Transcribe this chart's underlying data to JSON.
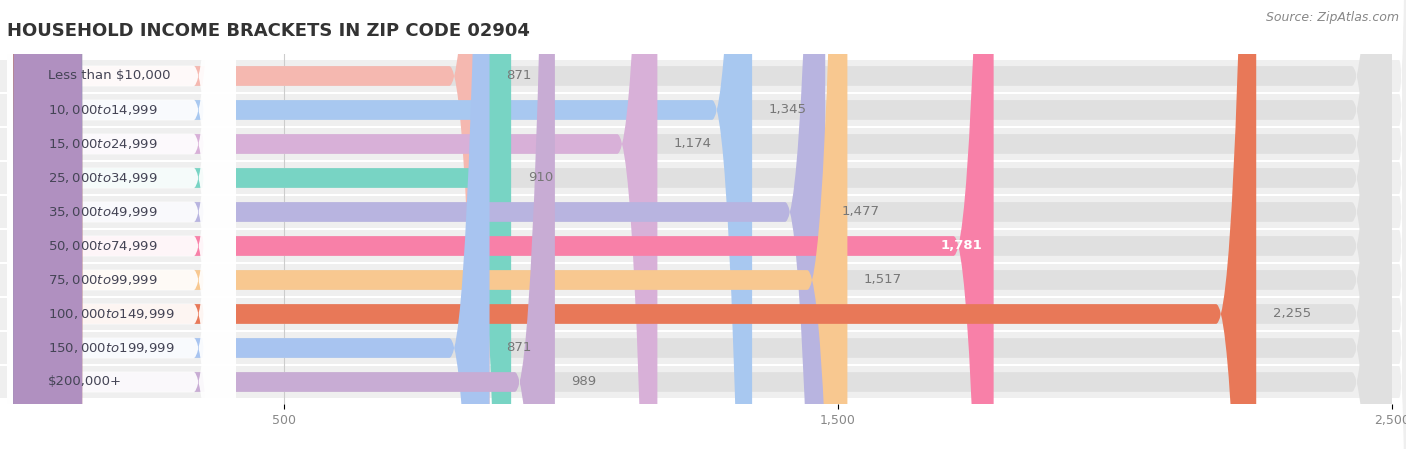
{
  "title": "HOUSEHOLD INCOME BRACKETS IN ZIP CODE 02904",
  "source": "Source: ZipAtlas.com",
  "categories": [
    "Less than $10,000",
    "$10,000 to $14,999",
    "$15,000 to $24,999",
    "$25,000 to $34,999",
    "$35,000 to $49,999",
    "$50,000 to $74,999",
    "$75,000 to $99,999",
    "$100,000 to $149,999",
    "$150,000 to $199,999",
    "$200,000+"
  ],
  "values": [
    871,
    1345,
    1174,
    910,
    1477,
    1781,
    1517,
    2255,
    871,
    989
  ],
  "bar_colors": [
    "#f5b8b0",
    "#a8c8f0",
    "#d8b0d8",
    "#78d4c4",
    "#b8b4e0",
    "#f880a8",
    "#f8c890",
    "#e87858",
    "#a8c4f0",
    "#c8acd4"
  ],
  "dot_colors": [
    "#f5a090",
    "#80b0e8",
    "#c890c8",
    "#50c8b8",
    "#9898d8",
    "#f04080",
    "#f0a840",
    "#d85030",
    "#80a8e0",
    "#b090c0"
  ],
  "value_inside": [
    false,
    false,
    false,
    false,
    false,
    true,
    false,
    false,
    false,
    false
  ],
  "xlim": [
    0,
    2500
  ],
  "xticks": [
    500,
    1500,
    2500
  ],
  "background_color": "#ffffff",
  "row_bg_color": "#f0f0f0",
  "bar_bg_color": "#e8e8e8",
  "label_box_color": "#ffffff",
  "title_fontsize": 13,
  "label_fontsize": 9.5,
  "value_fontsize": 9.5,
  "source_fontsize": 9
}
